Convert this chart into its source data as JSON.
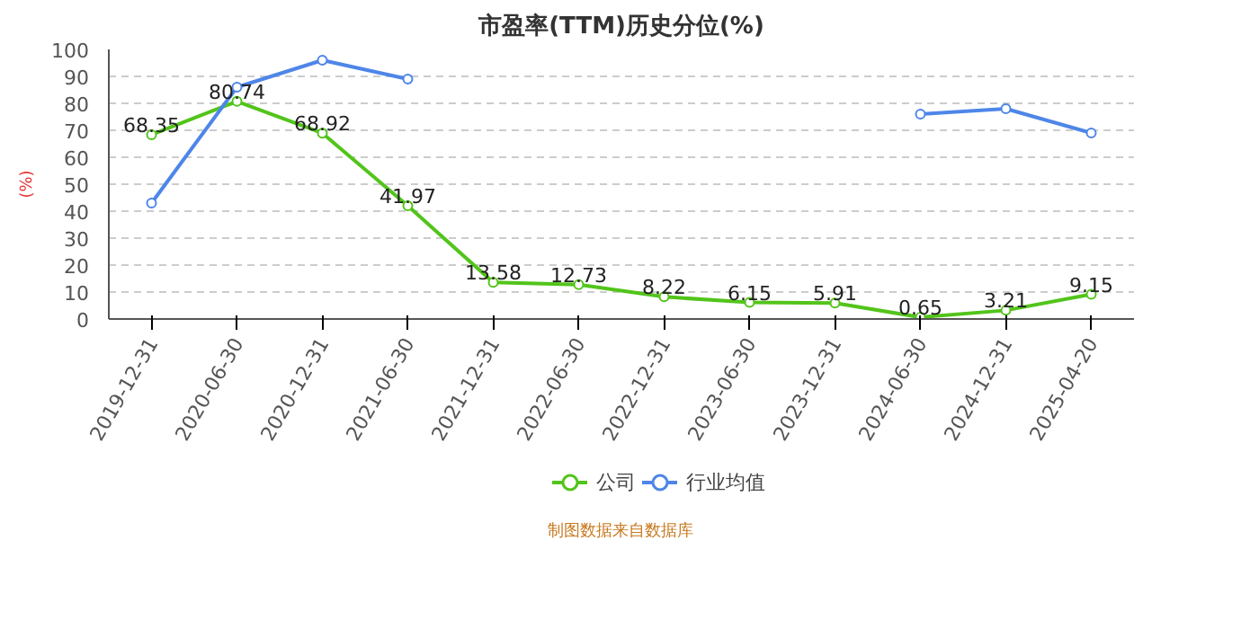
{
  "chart_data": {
    "type": "line",
    "title": "市盈率(TTM)历史分位(%)",
    "ylabel": "(%)",
    "categories": [
      "2019-12-31",
      "2020-06-30",
      "2020-12-31",
      "2021-06-30",
      "2021-12-31",
      "2022-06-30",
      "2022-12-31",
      "2023-06-30",
      "2023-12-31",
      "2024-06-30",
      "2024-12-31",
      "2025-04-20"
    ],
    "series": [
      {
        "name": "公司",
        "color": "#52c41a",
        "values": [
          68.35,
          80.74,
          68.92,
          41.97,
          13.58,
          12.73,
          8.22,
          6.15,
          5.91,
          0.65,
          3.21,
          9.15
        ],
        "value_labels": [
          "68.35",
          "80.74",
          "68.92",
          "41.97",
          "13.58",
          "12.73",
          "8.22",
          "6.15",
          "5.91",
          "0.65",
          "3.21",
          "9.15"
        ]
      },
      {
        "name": "行业均值",
        "color": "#4e86e8",
        "values": [
          43,
          86,
          96,
          89,
          null,
          null,
          null,
          null,
          null,
          76,
          78,
          69
        ]
      }
    ],
    "ylim": [
      0,
      100
    ],
    "yticks": [
      0,
      10,
      20,
      30,
      40,
      50,
      60,
      70,
      80,
      90,
      100
    ],
    "grid": "y",
    "legend": "bottom",
    "marker": "circle",
    "line_style": "solid",
    "annotations": [
      "制图数据来自数据库"
    ]
  }
}
